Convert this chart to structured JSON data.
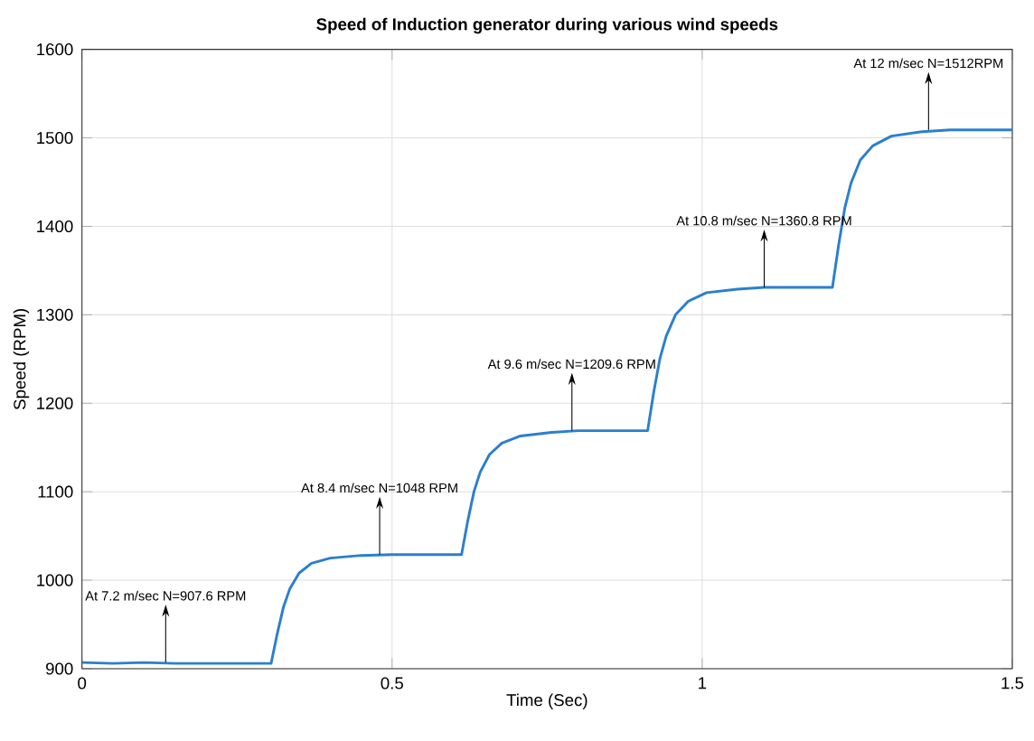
{
  "chart_data": {
    "type": "line",
    "title": "Speed of Induction generator during various wind speeds",
    "xlabel": "Time (Sec)",
    "ylabel": "Speed (RPM)",
    "series": [
      {
        "color": "#2a7fcf",
        "x": [
          0,
          0.05,
          0.1,
          0.15,
          0.2,
          0.305,
          0.315,
          0.325,
          0.335,
          0.35,
          0.37,
          0.4,
          0.45,
          0.5,
          0.612,
          0.622,
          0.632,
          0.642,
          0.657,
          0.677,
          0.707,
          0.757,
          0.8,
          0.912,
          0.922,
          0.932,
          0.942,
          0.957,
          0.977,
          1.007,
          1.057,
          1.1,
          1.21,
          1.22,
          1.23,
          1.24,
          1.255,
          1.275,
          1.305,
          1.355,
          1.4,
          1.5
        ],
        "values": [
          907,
          906,
          907,
          906,
          906,
          906,
          940,
          970,
          990,
          1008,
          1019,
          1025,
          1028,
          1029,
          1029,
          1067,
          1100,
          1122,
          1142,
          1155,
          1163,
          1167,
          1169,
          1169,
          1213,
          1251,
          1276,
          1300,
          1315,
          1325,
          1329,
          1331,
          1331,
          1379,
          1421,
          1449,
          1475,
          1491,
          1502,
          1507,
          1509,
          1509
        ]
      }
    ],
    "xlim": [
      0,
      1.5
    ],
    "ylim": [
      900,
      1600
    ],
    "xticks": [
      0,
      0.5,
      1,
      1.5
    ],
    "yticks": [
      900,
      1000,
      1100,
      1200,
      1300,
      1400,
      1500,
      1600
    ],
    "grid": true,
    "marker": "none",
    "line_style": "solid",
    "annotations": [
      {
        "text": "At 7.2 m/sec N=907.6 RPM",
        "x": 0.135,
        "y": 907
      },
      {
        "text": "At 8.4 m/sec N=1048 RPM",
        "x": 0.48,
        "y": 1029
      },
      {
        "text": "At 9.6 m/sec N=1209.6 RPM",
        "x": 0.79,
        "y": 1169
      },
      {
        "text": "At 10.8 m/sec N=1360.8 RPM",
        "x": 1.1,
        "y": 1331
      },
      {
        "text": "At 12 m/sec N=1512RPM",
        "x": 1.365,
        "y": 1509
      }
    ]
  }
}
